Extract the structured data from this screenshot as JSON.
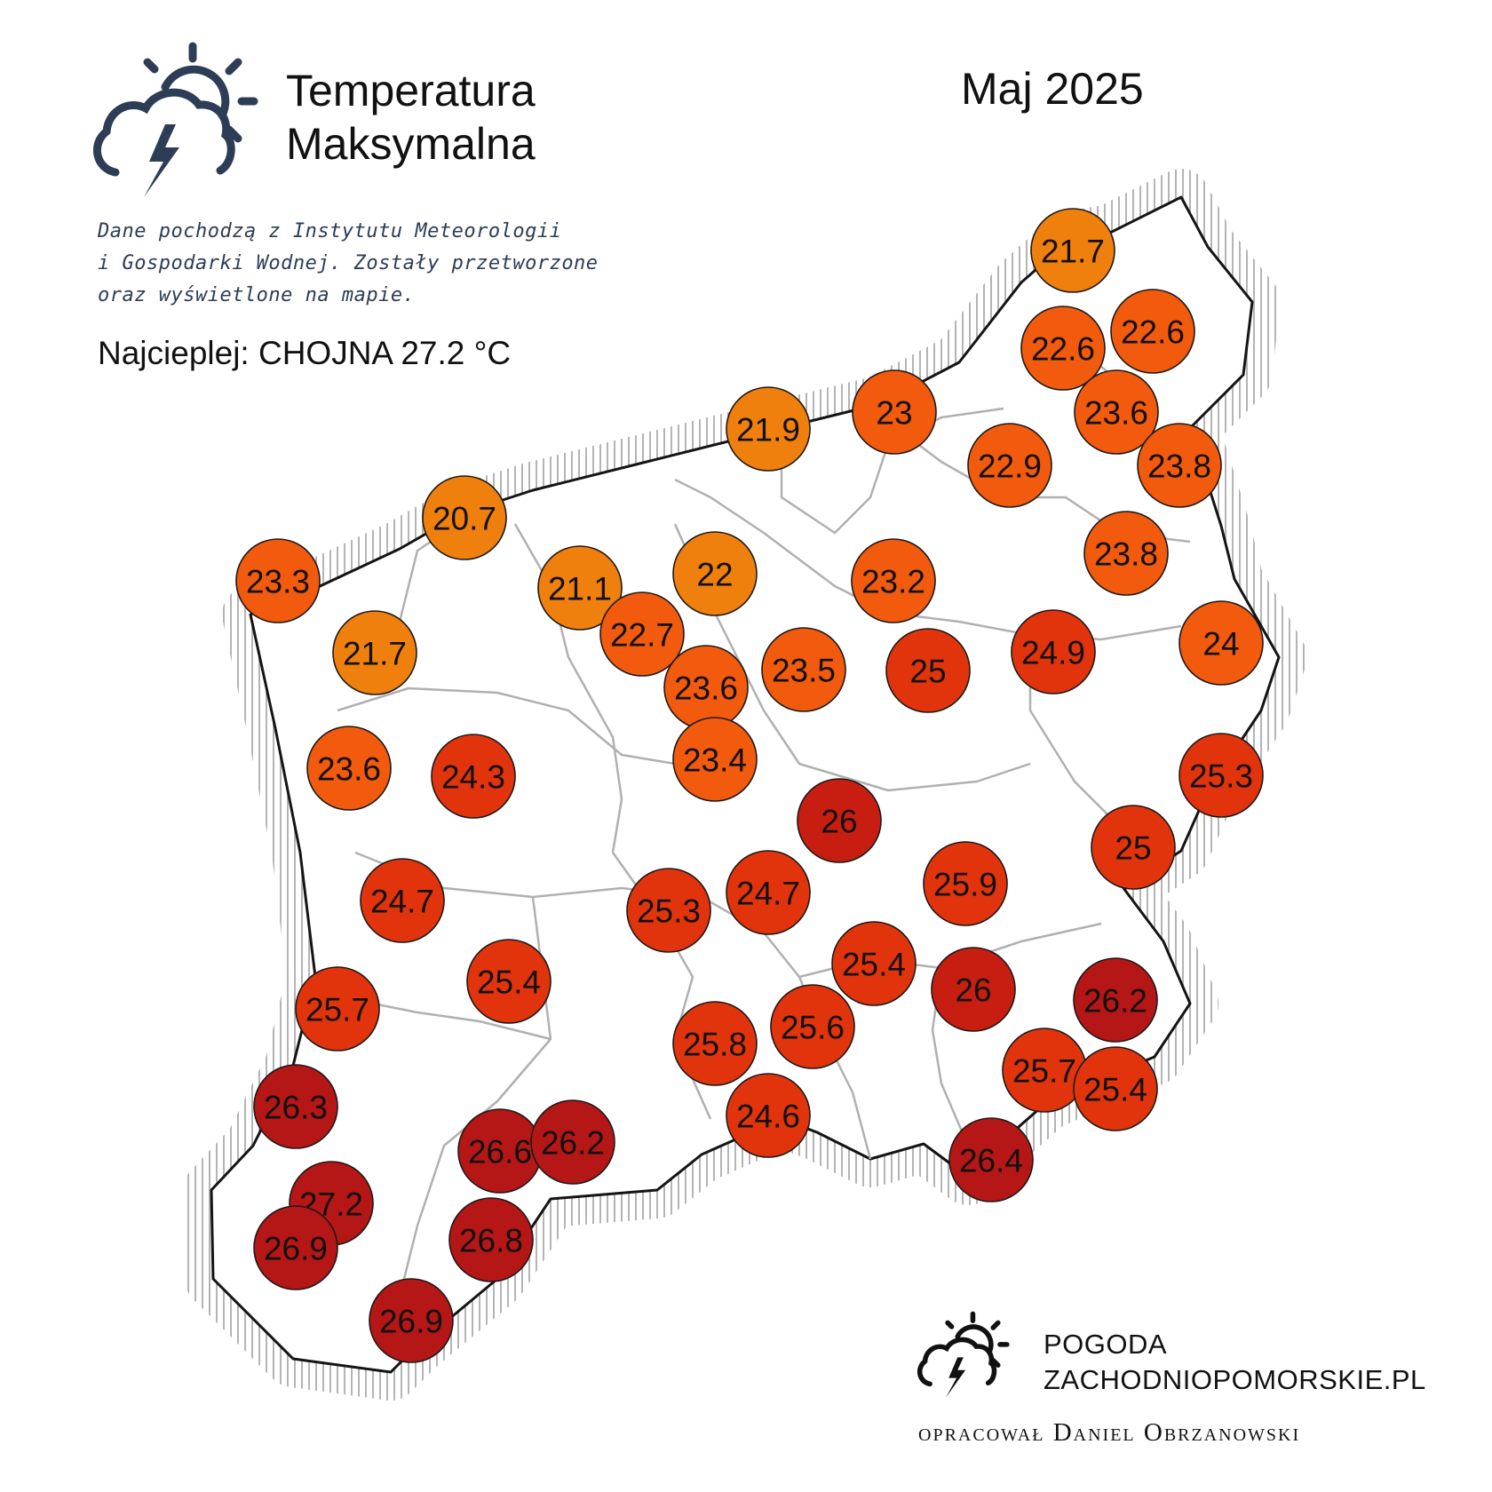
{
  "header": {
    "title_line1": "Temperatura",
    "title_line2": "Maksymalna",
    "period": "Maj 2025"
  },
  "source_note": [
    "Dane pochodzą z Instytutu Meteorologii",
    "i Gospodarki Wodnej. Zostały przetworzone",
    "oraz wyświetlone na mapie."
  ],
  "hottest": "Najcieplej: CHOJNA 27.2 °C",
  "logo_icon": "cloud-sun-lightning-icon",
  "footer": {
    "brand_line1": "POGODA",
    "brand_line2": "ZACHODNIOPOMORSKIE.PL",
    "author": "opracował Daniel Obrzanowski"
  },
  "color_scale": {
    "orange_light": "#F0800E",
    "orange": "#F25A0E",
    "red_orange": "#E1340C",
    "red": "#C81E12",
    "dark_red": "#B51616"
  },
  "stations": [
    {
      "label": "21.7",
      "value": 21.7
    },
    {
      "label": "22.6",
      "value": 22.6
    },
    {
      "label": "22.6",
      "value": 22.6
    },
    {
      "label": "23.6",
      "value": 23.6
    },
    {
      "label": "23",
      "value": 23
    },
    {
      "label": "22.9",
      "value": 22.9
    },
    {
      "label": "23.8",
      "value": 23.8
    },
    {
      "label": "21.9",
      "value": 21.9
    },
    {
      "label": "23.8",
      "value": 23.8
    },
    {
      "label": "20.7",
      "value": 20.7
    },
    {
      "label": "23.3",
      "value": 23.3
    },
    {
      "label": "21.1",
      "value": 21.1
    },
    {
      "label": "22",
      "value": 22
    },
    {
      "label": "23.2",
      "value": 23.2
    },
    {
      "label": "22.7",
      "value": 22.7
    },
    {
      "label": "24",
      "value": 24
    },
    {
      "label": "21.7",
      "value": 21.7
    },
    {
      "label": "23.5",
      "value": 23.5
    },
    {
      "label": "25",
      "value": 25
    },
    {
      "label": "24.9",
      "value": 24.9
    },
    {
      "label": "23.6",
      "value": 23.6
    },
    {
      "label": "23.4",
      "value": 23.4
    },
    {
      "label": "23.6",
      "value": 23.6
    },
    {
      "label": "24.3",
      "value": 24.3
    },
    {
      "label": "25.3",
      "value": 25.3
    },
    {
      "label": "26",
      "value": 26
    },
    {
      "label": "25",
      "value": 25
    },
    {
      "label": "25.9",
      "value": 25.9
    },
    {
      "label": "24.7",
      "value": 24.7
    },
    {
      "label": "24.7",
      "value": 24.7
    },
    {
      "label": "25.3",
      "value": 25.3
    },
    {
      "label": "25.4",
      "value": 25.4
    },
    {
      "label": "26",
      "value": 26
    },
    {
      "label": "25.4",
      "value": 25.4
    },
    {
      "label": "25.7",
      "value": 25.7
    },
    {
      "label": "25.6",
      "value": 25.6
    },
    {
      "label": "26.2",
      "value": 26.2
    },
    {
      "label": "25.8",
      "value": 25.8
    },
    {
      "label": "25.7",
      "value": 25.7
    },
    {
      "label": "25.4",
      "value": 25.4
    },
    {
      "label": "26.3",
      "value": 26.3
    },
    {
      "label": "24.6",
      "value": 24.6
    },
    {
      "label": "26.6",
      "value": 26.6
    },
    {
      "label": "26.2",
      "value": 26.2
    },
    {
      "label": "26.4",
      "value": 26.4
    },
    {
      "label": "27.2",
      "value": 27.2
    },
    {
      "label": "26.9",
      "value": 26.9
    },
    {
      "label": "26.8",
      "value": 26.8
    },
    {
      "label": "26.9",
      "value": 26.9
    }
  ]
}
